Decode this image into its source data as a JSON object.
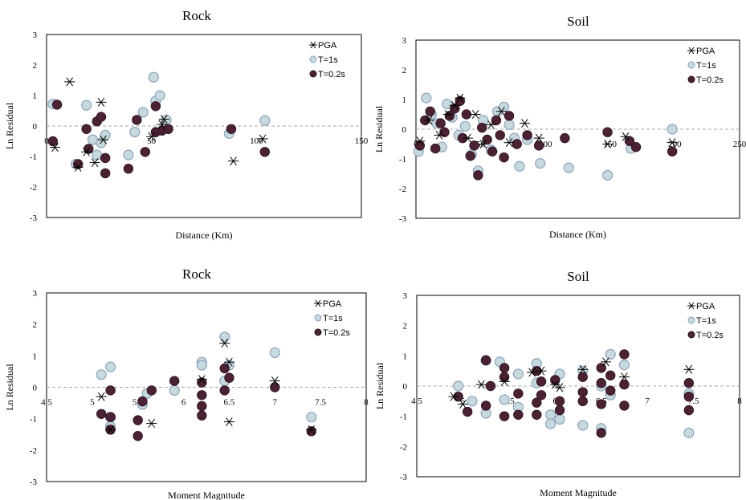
{
  "chart_data": [
    {
      "type": "scatter",
      "title": "Rock",
      "xlabel": "Distance (Km)",
      "ylabel": "Ln Residual",
      "xlim": [
        0,
        150
      ],
      "ylim": [
        -3,
        3
      ],
      "xticks": [
        "0",
        "50",
        "100",
        "150"
      ],
      "yticks": [
        "-3",
        "-2",
        "-1",
        "0",
        "1",
        "2",
        "3"
      ],
      "legend_position": "top-right",
      "series": [
        {
          "name": "PGA",
          "marker": "asterisk",
          "color": "#000000",
          "points": [
            [
              4,
              -0.7
            ],
            [
              11,
              1.45
            ],
            [
              15,
              -1.35
            ],
            [
              19,
              -0.85
            ],
            [
              23,
              -1.2
            ],
            [
              26,
              0.78
            ],
            [
              27,
              -0.45
            ],
            [
              50,
              -0.35
            ],
            [
              55,
              0.05
            ],
            [
              56,
              0.22
            ],
            [
              89,
              -1.15
            ],
            [
              103,
              -0.42
            ]
          ]
        },
        {
          "name": "T=1s",
          "marker": "circle",
          "color": "#c6d9dc",
          "points": [
            [
              3,
              0.72
            ],
            [
              14,
              -1.25
            ],
            [
              19,
              0.68
            ],
            [
              22,
              -0.45
            ],
            [
              24,
              -0.95
            ],
            [
              26,
              -0.55
            ],
            [
              28,
              -0.3
            ],
            [
              39,
              -0.95
            ],
            [
              42,
              -0.2
            ],
            [
              46,
              0.45
            ],
            [
              51,
              1.6
            ],
            [
              52,
              0.82
            ],
            [
              54,
              1.0
            ],
            [
              57,
              0.2
            ],
            [
              87,
              -0.25
            ],
            [
              104,
              0.18
            ]
          ]
        },
        {
          "name": "T=0.2s",
          "marker": "circle",
          "color": "#4a2233",
          "points": [
            [
              3,
              -0.5
            ],
            [
              5,
              0.7
            ],
            [
              15,
              -1.25
            ],
            [
              19,
              -0.1
            ],
            [
              20,
              -0.75
            ],
            [
              24,
              0.15
            ],
            [
              26,
              0.3
            ],
            [
              28,
              -1.05
            ],
            [
              28,
              -1.55
            ],
            [
              39,
              -1.4
            ],
            [
              43,
              0.2
            ],
            [
              47,
              -0.85
            ],
            [
              52,
              0.65
            ],
            [
              52,
              -0.2
            ],
            [
              55,
              -0.15
            ],
            [
              58,
              -0.1
            ],
            [
              88,
              -0.1
            ],
            [
              104,
              -0.85
            ]
          ]
        }
      ]
    },
    {
      "type": "scatter",
      "title": "Soil",
      "xlabel": "Distance (Km)",
      "ylabel": "Ln Residual",
      "xlim": [
        0,
        250
      ],
      "ylim": [
        -3,
        3
      ],
      "xticks": [
        "0",
        "50",
        "100",
        "150",
        "200",
        "250"
      ],
      "yticks": [
        "-3",
        "-2",
        "-1",
        "0",
        "1",
        "2",
        "3"
      ],
      "legend_position": "top-right",
      "series": [
        {
          "name": "PGA",
          "marker": "asterisk",
          "color": "#000000",
          "points": [
            [
              3,
              -0.4
            ],
            [
              10,
              0.3
            ],
            [
              18,
              -0.2
            ],
            [
              25,
              0.5
            ],
            [
              30,
              0.8
            ],
            [
              34,
              1.05
            ],
            [
              40,
              -0.3
            ],
            [
              46,
              0.5
            ],
            [
              52,
              -0.5
            ],
            [
              58,
              0.15
            ],
            [
              66,
              0.6
            ],
            [
              72,
              -0.45
            ],
            [
              84,
              0.2
            ],
            [
              95,
              -0.3
            ],
            [
              148,
              -0.5
            ],
            [
              162,
              -0.25
            ],
            [
              198,
              -0.45
            ]
          ]
        },
        {
          "name": "T=1s",
          "marker": "circle",
          "color": "#c6d9dc",
          "points": [
            [
              2,
              -0.75
            ],
            [
              8,
              1.05
            ],
            [
              12,
              0.5
            ],
            [
              16,
              0.2
            ],
            [
              20,
              -0.6
            ],
            [
              24,
              0.85
            ],
            [
              28,
              0.4
            ],
            [
              33,
              -0.2
            ],
            [
              38,
              0.1
            ],
            [
              43,
              -0.85
            ],
            [
              48,
              -1.4
            ],
            [
              52,
              0.3
            ],
            [
              58,
              -0.7
            ],
            [
              63,
              0.6
            ],
            [
              68,
              0.75
            ],
            [
              72,
              0.15
            ],
            [
              76,
              -0.3
            ],
            [
              80,
              -1.25
            ],
            [
              86,
              -0.35
            ],
            [
              96,
              -1.15
            ],
            [
              118,
              -1.3
            ],
            [
              148,
              -1.55
            ],
            [
              166,
              -0.65
            ],
            [
              198,
              0.0
            ]
          ]
        },
        {
          "name": "T=0.2s",
          "marker": "circle",
          "color": "#4a2233",
          "points": [
            [
              3,
              -0.55
            ],
            [
              7,
              0.3
            ],
            [
              11,
              0.6
            ],
            [
              15,
              -0.65
            ],
            [
              19,
              0.2
            ],
            [
              22,
              -0.1
            ],
            [
              26,
              0.45
            ],
            [
              30,
              0.7
            ],
            [
              34,
              0.95
            ],
            [
              36,
              -0.3
            ],
            [
              39,
              0.5
            ],
            [
              42,
              -0.9
            ],
            [
              45,
              -0.55
            ],
            [
              48,
              -1.55
            ],
            [
              51,
              0.05
            ],
            [
              55,
              -0.35
            ],
            [
              59,
              -0.75
            ],
            [
              62,
              0.3
            ],
            [
              65,
              -0.2
            ],
            [
              68,
              -0.95
            ],
            [
              72,
              0.45
            ],
            [
              78,
              -0.5
            ],
            [
              86,
              -0.2
            ],
            [
              95,
              -0.55
            ],
            [
              115,
              -0.3
            ],
            [
              148,
              -0.1
            ],
            [
              165,
              -0.4
            ],
            [
              170,
              -0.6
            ],
            [
              198,
              -0.75
            ]
          ]
        }
      ]
    },
    {
      "type": "scatter",
      "title": "Rock",
      "xlabel": "Moment Magnitude",
      "ylabel": "Ln Residual",
      "xlim": [
        4.5,
        8
      ],
      "ylim": [
        -3,
        3
      ],
      "xticks": [
        "4.5",
        "5",
        "5.5",
        "6",
        "6.5",
        "7",
        "7.5",
        "8"
      ],
      "yticks": [
        "-3",
        "-2",
        "-1",
        "0",
        "1",
        "2",
        "3"
      ],
      "legend_position": "top-right",
      "series": [
        {
          "name": "PGA",
          "marker": "asterisk",
          "color": "#000000",
          "points": [
            [
              5.1,
              -0.3
            ],
            [
              5.2,
              -1.35
            ],
            [
              5.65,
              -1.15
            ],
            [
              6.2,
              0.25
            ],
            [
              6.45,
              1.4
            ],
            [
              6.5,
              0.8
            ],
            [
              6.5,
              -1.1
            ],
            [
              7.0,
              0.2
            ],
            [
              7.4,
              -1.35
            ]
          ]
        },
        {
          "name": "T=1s",
          "marker": "circle",
          "color": "#c6d9dc",
          "points": [
            [
              5.1,
              0.4
            ],
            [
              5.2,
              0.65
            ],
            [
              5.2,
              -0.95
            ],
            [
              5.2,
              -1.25
            ],
            [
              5.55,
              -0.55
            ],
            [
              5.6,
              -0.2
            ],
            [
              5.9,
              -0.1
            ],
            [
              6.2,
              0.8
            ],
            [
              6.2,
              0.7
            ],
            [
              6.45,
              1.6
            ],
            [
              6.45,
              0.2
            ],
            [
              6.5,
              0.7
            ],
            [
              7.0,
              1.1
            ],
            [
              7.4,
              -0.95
            ]
          ]
        },
        {
          "name": "T=0.2s",
          "marker": "circle",
          "color": "#4a2233",
          "points": [
            [
              5.1,
              -0.85
            ],
            [
              5.2,
              -0.1
            ],
            [
              5.2,
              -0.95
            ],
            [
              5.2,
              -1.35
            ],
            [
              5.5,
              -1.05
            ],
            [
              5.5,
              -1.55
            ],
            [
              5.55,
              -0.45
            ],
            [
              5.65,
              -0.1
            ],
            [
              5.9,
              0.2
            ],
            [
              6.2,
              0.15
            ],
            [
              6.2,
              -0.25
            ],
            [
              6.2,
              -0.6
            ],
            [
              6.2,
              -0.9
            ],
            [
              6.45,
              0.6
            ],
            [
              6.45,
              -0.1
            ],
            [
              6.5,
              0.3
            ],
            [
              7.0,
              0.0
            ],
            [
              7.4,
              -1.4
            ]
          ]
        }
      ]
    },
    {
      "type": "scatter",
      "title": "Soil",
      "xlabel": "Moment Magnitude",
      "ylabel": "Ln Residual",
      "xlim": [
        4.5,
        8
      ],
      "ylim": [
        -3,
        3
      ],
      "xticks": [
        "4.5",
        "5",
        "5.5",
        "6",
        "6.5",
        "7",
        "7.5",
        "8"
      ],
      "yticks": [
        "-3",
        "-2",
        "-1",
        "0",
        "1",
        "2",
        "3"
      ],
      "legend_position": "top-right",
      "series": [
        {
          "name": "PGA",
          "marker": "asterisk",
          "color": "#000000",
          "points": [
            [
              4.9,
              -0.35
            ],
            [
              5.0,
              -0.6
            ],
            [
              5.2,
              0.05
            ],
            [
              5.45,
              0.15
            ],
            [
              5.75,
              0.45
            ],
            [
              5.85,
              0.5
            ],
            [
              6.0,
              0.05
            ],
            [
              6.05,
              -0.05
            ],
            [
              6.3,
              0.55
            ],
            [
              6.55,
              0.8
            ],
            [
              6.75,
              0.3
            ],
            [
              7.45,
              0.55
            ]
          ]
        },
        {
          "name": "T=1s",
          "marker": "circle",
          "color": "#c6d9dc",
          "points": [
            [
              4.95,
              0.0
            ],
            [
              5.1,
              -0.5
            ],
            [
              5.25,
              0.85
            ],
            [
              5.25,
              -0.9
            ],
            [
              5.4,
              0.8
            ],
            [
              5.45,
              -0.45
            ],
            [
              5.6,
              0.4
            ],
            [
              5.6,
              -0.7
            ],
            [
              5.8,
              0.75
            ],
            [
              5.8,
              0.1
            ],
            [
              5.95,
              -0.95
            ],
            [
              5.95,
              -1.25
            ],
            [
              6.05,
              0.4
            ],
            [
              6.05,
              -1.1
            ],
            [
              6.3,
              0.5
            ],
            [
              6.3,
              -1.3
            ],
            [
              6.5,
              0.0
            ],
            [
              6.5,
              -1.4
            ],
            [
              6.6,
              1.05
            ],
            [
              6.6,
              -0.3
            ],
            [
              6.75,
              0.7
            ],
            [
              7.45,
              -0.25
            ],
            [
              7.45,
              -1.55
            ]
          ]
        },
        {
          "name": "T=0.2s",
          "marker": "circle",
          "color": "#4a2233",
          "points": [
            [
              4.95,
              -0.35
            ],
            [
              5.05,
              -0.85
            ],
            [
              5.25,
              0.85
            ],
            [
              5.25,
              -0.65
            ],
            [
              5.3,
              0.0
            ],
            [
              5.45,
              0.6
            ],
            [
              5.45,
              -1.0
            ],
            [
              5.45,
              0.3
            ],
            [
              5.6,
              -0.25
            ],
            [
              5.6,
              -0.95
            ],
            [
              5.8,
              0.5
            ],
            [
              5.8,
              -0.55
            ],
            [
              5.8,
              -0.95
            ],
            [
              5.85,
              0.15
            ],
            [
              5.85,
              -0.3
            ],
            [
              6.0,
              0.2
            ],
            [
              6.05,
              -0.5
            ],
            [
              6.05,
              -0.8
            ],
            [
              6.3,
              0.3
            ],
            [
              6.3,
              -0.2
            ],
            [
              6.3,
              -0.5
            ],
            [
              6.5,
              0.6
            ],
            [
              6.5,
              0.1
            ],
            [
              6.5,
              -0.6
            ],
            [
              6.5,
              -1.55
            ],
            [
              6.6,
              0.35
            ],
            [
              6.6,
              -0.15
            ],
            [
              6.75,
              1.05
            ],
            [
              6.75,
              0.05
            ],
            [
              6.75,
              -0.65
            ],
            [
              7.45,
              0.1
            ],
            [
              7.45,
              -0.35
            ],
            [
              7.45,
              -0.8
            ]
          ]
        }
      ]
    }
  ]
}
